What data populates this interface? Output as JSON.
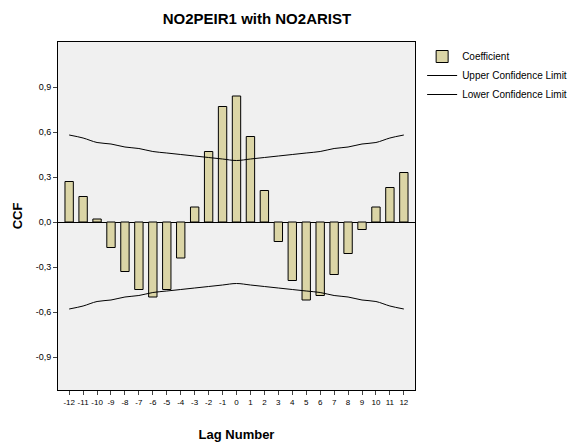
{
  "chart_data": {
    "type": "bar",
    "title": "NO2PEIR1 with NO2ARIST",
    "x_label": "Lag Number",
    "y_label": "CCF",
    "categories": [
      "-12",
      "-11",
      "-10",
      "-9",
      "-8",
      "-7",
      "-6",
      "-5",
      "-4",
      "-3",
      "-2",
      "-1",
      "0",
      "1",
      "2",
      "3",
      "4",
      "5",
      "6",
      "7",
      "8",
      "9",
      "10",
      "11",
      "12"
    ],
    "series": [
      {
        "name": "Coefficient",
        "type": "bar",
        "color": "#dbd5a6",
        "values": [
          0.27,
          0.17,
          0.02,
          -0.17,
          -0.33,
          -0.45,
          -0.5,
          -0.45,
          -0.24,
          0.1,
          0.47,
          0.77,
          0.84,
          0.57,
          0.21,
          -0.13,
          -0.39,
          -0.52,
          -0.49,
          -0.35,
          -0.21,
          -0.05,
          0.1,
          0.23,
          0.33
        ]
      },
      {
        "name": "Upper Confidence Limit",
        "type": "line",
        "color": "#000000",
        "values": [
          0.58,
          0.56,
          0.53,
          0.52,
          0.5,
          0.49,
          0.47,
          0.46,
          0.45,
          0.44,
          0.43,
          0.42,
          0.41,
          0.42,
          0.43,
          0.44,
          0.45,
          0.46,
          0.47,
          0.49,
          0.5,
          0.52,
          0.53,
          0.56,
          0.58
        ]
      },
      {
        "name": "Lower Confidence Limit",
        "type": "line",
        "color": "#000000",
        "values": [
          -0.58,
          -0.56,
          -0.53,
          -0.52,
          -0.5,
          -0.49,
          -0.47,
          -0.46,
          -0.45,
          -0.44,
          -0.43,
          -0.42,
          -0.41,
          -0.42,
          -0.43,
          -0.44,
          -0.45,
          -0.46,
          -0.47,
          -0.49,
          -0.5,
          -0.52,
          -0.53,
          -0.56,
          -0.58
        ]
      }
    ],
    "ylim": [
      -1.12,
      1.2
    ],
    "yticks": [
      {
        "value": -0.9,
        "label": "-0,9"
      },
      {
        "value": -0.6,
        "label": "-0,6"
      },
      {
        "value": -0.3,
        "label": "-0,3"
      },
      {
        "value": 0.0,
        "label": "0,0"
      },
      {
        "value": 0.3,
        "label": "0,3"
      },
      {
        "value": 0.6,
        "label": "0,6"
      },
      {
        "value": 0.9,
        "label": "0,9"
      }
    ],
    "grid": false,
    "legend": "top right"
  }
}
